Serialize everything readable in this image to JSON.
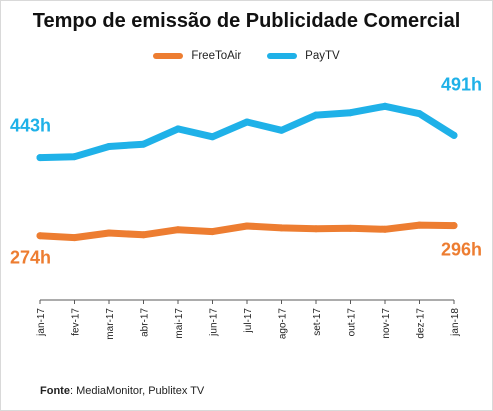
{
  "chart_data": {
    "type": "line",
    "title": "Tempo de emissão de Publicidade Comercial",
    "categories": [
      "jan-17",
      "fev-17",
      "mar-17",
      "abr-17",
      "mai-17",
      "jun-17",
      "jul-17",
      "ago-17",
      "set-17",
      "out-17",
      "nov-17",
      "dez-17",
      "jan-18"
    ],
    "series": [
      {
        "name": "FreeToAir",
        "color": "#ed7d31",
        "values": [
          274,
          270,
          280,
          276,
          287,
          283,
          295,
          291,
          289,
          290,
          288,
          297,
          296
        ],
        "start_label": "274h",
        "end_label": "296h"
      },
      {
        "name": "PayTV",
        "color": "#1fb1e8",
        "values": [
          443,
          445,
          467,
          472,
          505,
          488,
          520,
          502,
          535,
          540,
          554,
          538,
          491
        ],
        "start_label": "443h",
        "end_label": "491h"
      }
    ],
    "ylim": [
      135,
      600
    ],
    "xlabel": "",
    "ylabel": "",
    "grid": false,
    "legend_position": "top-center"
  },
  "source": {
    "label": "Fonte",
    "text": ": MediaMonitor, Publitex TV"
  }
}
